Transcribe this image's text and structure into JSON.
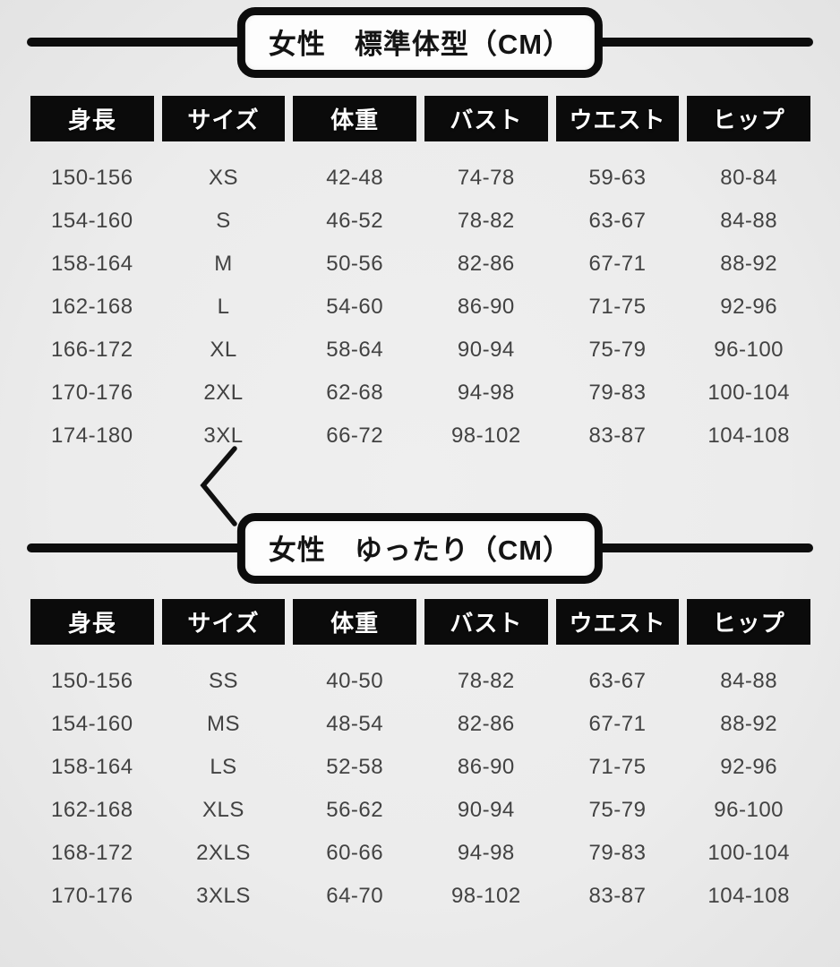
{
  "page": {
    "background_color": "#ececec",
    "header_bg_color": "#0b0b0b",
    "header_text_color": "#ffffff",
    "bar_color": "#0d0d0d",
    "data_text_color": "#424242"
  },
  "chart_data": [
    {
      "type": "table",
      "title": "女性　標準体型（CM）",
      "headers": [
        "身長",
        "サイズ",
        "体重",
        "バスト",
        "ウエスト",
        "ヒップ"
      ],
      "rows": [
        [
          "150-156",
          "XS",
          "42-48",
          "74-78",
          "59-63",
          "80-84"
        ],
        [
          "154-160",
          "S",
          "46-52",
          "78-82",
          "63-67",
          "84-88"
        ],
        [
          "158-164",
          "M",
          "50-56",
          "82-86",
          "67-71",
          "88-92"
        ],
        [
          "162-168",
          "L",
          "54-60",
          "86-90",
          "71-75",
          "92-96"
        ],
        [
          "166-172",
          "XL",
          "58-64",
          "90-94",
          "75-79",
          "96-100"
        ],
        [
          "170-176",
          "2XL",
          "62-68",
          "94-98",
          "79-83",
          "100-104"
        ],
        [
          "174-180",
          "3XL",
          "66-72",
          "98-102",
          "83-87",
          "104-108"
        ]
      ]
    },
    {
      "type": "table",
      "title": "女性　ゆったり（CM）",
      "headers": [
        "身長",
        "サイズ",
        "体重",
        "バスト",
        "ウエスト",
        "ヒップ"
      ],
      "rows": [
        [
          "150-156",
          "SS",
          "40-50",
          "78-82",
          "63-67",
          "84-88"
        ],
        [
          "154-160",
          "MS",
          "48-54",
          "82-86",
          "67-71",
          "88-92"
        ],
        [
          "158-164",
          "LS",
          "52-58",
          "86-90",
          "71-75",
          "92-96"
        ],
        [
          "162-168",
          "XLS",
          "56-62",
          "90-94",
          "75-79",
          "96-100"
        ],
        [
          "168-172",
          "2XLS",
          "60-66",
          "94-98",
          "79-83",
          "100-104"
        ],
        [
          "170-176",
          "3XLS",
          "64-70",
          "98-102",
          "83-87",
          "104-108"
        ]
      ]
    }
  ]
}
